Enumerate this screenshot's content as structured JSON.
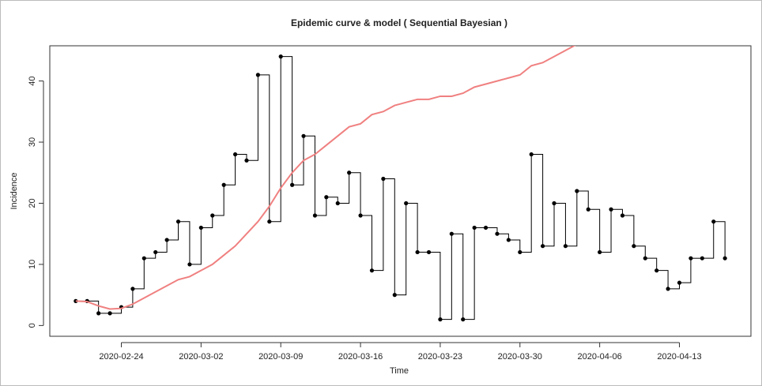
{
  "chart_data": {
    "type": "line",
    "title": "Epidemic curve & model ( Sequential Bayesian )",
    "xlabel": "Time",
    "ylabel": "Incidence",
    "x": [
      "2020-02-20",
      "2020-02-21",
      "2020-02-22",
      "2020-02-23",
      "2020-02-24",
      "2020-02-25",
      "2020-02-26",
      "2020-02-27",
      "2020-02-28",
      "2020-02-29",
      "2020-03-01",
      "2020-03-02",
      "2020-03-03",
      "2020-03-04",
      "2020-03-05",
      "2020-03-06",
      "2020-03-07",
      "2020-03-08",
      "2020-03-09",
      "2020-03-10",
      "2020-03-11",
      "2020-03-12",
      "2020-03-13",
      "2020-03-14",
      "2020-03-15",
      "2020-03-16",
      "2020-03-17",
      "2020-03-18",
      "2020-03-19",
      "2020-03-20",
      "2020-03-21",
      "2020-03-22",
      "2020-03-23",
      "2020-03-24",
      "2020-03-25",
      "2020-03-26",
      "2020-03-27",
      "2020-03-28",
      "2020-03-29",
      "2020-03-30",
      "2020-03-31",
      "2020-04-01",
      "2020-04-02",
      "2020-04-03",
      "2020-04-04",
      "2020-04-05",
      "2020-04-06",
      "2020-04-07",
      "2020-04-08",
      "2020-04-09",
      "2020-04-10",
      "2020-04-11",
      "2020-04-12",
      "2020-04-13",
      "2020-04-14",
      "2020-04-15",
      "2020-04-16",
      "2020-04-17"
    ],
    "series": [
      {
        "color": "#000000",
        "step": true,
        "points": true,
        "values": [
          4,
          4,
          2,
          2,
          3,
          6,
          11,
          12,
          14,
          17,
          10,
          16,
          18,
          23,
          28,
          27,
          41,
          17,
          44,
          23,
          31,
          18,
          21,
          20,
          25,
          18,
          9,
          24,
          5,
          20,
          12,
          12,
          1,
          15,
          1,
          16,
          16,
          15,
          14,
          12,
          28,
          13,
          20,
          13,
          22,
          19,
          12,
          19,
          18,
          13,
          11,
          9,
          6,
          7,
          11,
          11,
          17,
          11
        ]
      },
      {
        "color": "#f08080",
        "step": false,
        "points": false,
        "values": [
          4,
          3.9,
          3.2,
          2.7,
          2.8,
          3.5,
          4.5,
          5.5,
          6.5,
          7.5,
          8,
          9,
          10,
          11.5,
          13,
          15,
          17,
          19.5,
          22.5,
          25,
          27,
          28,
          29.5,
          31,
          32.5,
          33,
          34.5,
          35,
          36,
          36.5,
          37,
          37,
          37.5,
          37.5,
          38,
          39,
          39.5,
          40,
          40.5,
          41,
          42.5,
          43,
          44,
          45,
          46,
          null,
          null,
          null,
          null,
          null,
          null,
          null,
          null,
          null,
          null,
          null,
          null,
          null
        ]
      }
    ],
    "xlim": [
      "2020-02-17T17:17:00Z",
      "2020-04-19T06:43:00Z"
    ],
    "xticks": [
      "2020-02-24",
      "2020-03-02",
      "2020-03-09",
      "2020-03-16",
      "2020-03-23",
      "2020-03-30",
      "2020-04-06",
      "2020-04-13"
    ],
    "ylim": [
      -1.76,
      45.76
    ],
    "yticks": [
      0,
      10,
      20,
      30,
      40
    ]
  }
}
